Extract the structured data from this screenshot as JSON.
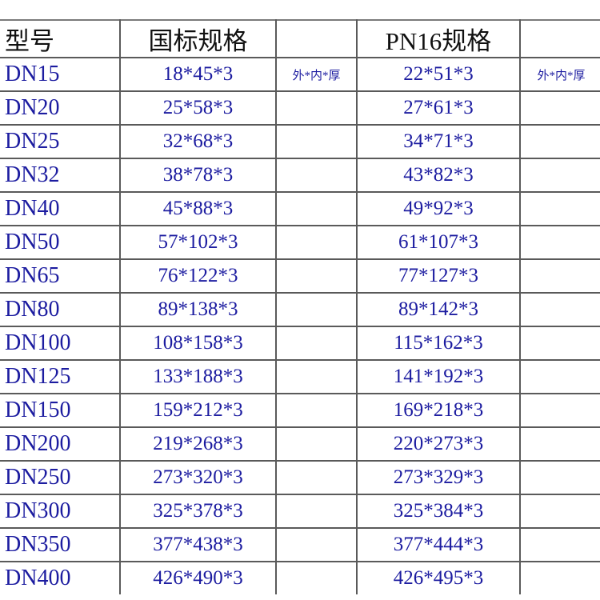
{
  "header": {
    "model": "型号",
    "gb_spec": "国标规格",
    "pn16_spec": "PN16规格"
  },
  "note": "外*内*厚",
  "rows": [
    {
      "model": "DN15",
      "gb": "18*45*3",
      "pn16": "22*51*3"
    },
    {
      "model": "DN20",
      "gb": "25*58*3",
      "pn16": "27*61*3"
    },
    {
      "model": "DN25",
      "gb": "32*68*3",
      "pn16": "34*71*3"
    },
    {
      "model": "DN32",
      "gb": "38*78*3",
      "pn16": "43*82*3"
    },
    {
      "model": "DN40",
      "gb": "45*88*3",
      "pn16": "49*92*3"
    },
    {
      "model": "DN50",
      "gb": "57*102*3",
      "pn16": "61*107*3"
    },
    {
      "model": "DN65",
      "gb": "76*122*3",
      "pn16": "77*127*3"
    },
    {
      "model": "DN80",
      "gb": "89*138*3",
      "pn16": "89*142*3"
    },
    {
      "model": "DN100",
      "gb": "108*158*3",
      "pn16": "115*162*3"
    },
    {
      "model": "DN125",
      "gb": "133*188*3",
      "pn16": "141*192*3"
    },
    {
      "model": "DN150",
      "gb": "159*212*3",
      "pn16": "169*218*3"
    },
    {
      "model": "DN200",
      "gb": "219*268*3",
      "pn16": "220*273*3"
    },
    {
      "model": "DN250",
      "gb": "273*320*3",
      "pn16": "273*329*3"
    },
    {
      "model": "DN300",
      "gb": "325*378*3",
      "pn16": "325*384*3"
    },
    {
      "model": "DN350",
      "gb": "377*438*3",
      "pn16": "377*444*3"
    },
    {
      "model": "DN400",
      "gb": "426*490*3",
      "pn16": "426*495*3"
    }
  ],
  "colors": {
    "text_blue": "#1c1ca0",
    "header_text": "#111111",
    "grid": "#5a5a5a"
  }
}
